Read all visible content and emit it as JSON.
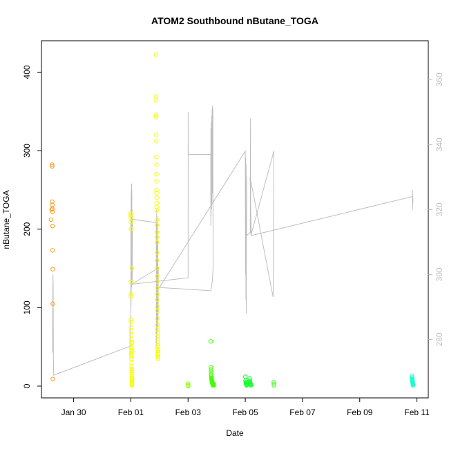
{
  "chart_data": {
    "type": "scatter",
    "title": "ATOM2 Southbound nButane_TOGA",
    "xlabel": "Date",
    "ylabel": "nButane_TOGA",
    "xlim": [
      "2017-01-28T21:00",
      "2017-02-11T09:30"
    ],
    "ylim": [
      -15,
      440
    ],
    "y2lim": [
      262,
      372
    ],
    "x_ticks": [
      {
        "date": "2017-01-30",
        "label": "Jan 30"
      },
      {
        "date": "2017-02-01",
        "label": "Feb 01"
      },
      {
        "date": "2017-02-03",
        "label": "Feb 03"
      },
      {
        "date": "2017-02-05",
        "label": "Feb 05"
      },
      {
        "date": "2017-02-07",
        "label": "Feb 07"
      },
      {
        "date": "2017-02-09",
        "label": "Feb 09"
      },
      {
        "date": "2017-02-11",
        "label": "Feb 11"
      }
    ],
    "y_ticks": [
      0,
      100,
      200,
      300,
      400
    ],
    "y2_ticks": [
      280,
      300,
      320,
      340,
      360
    ],
    "grid": false,
    "legend": "none",
    "line_series": {
      "color": "#bebebe",
      "points": [
        [
          "2017-01-29T06:05",
          276
        ],
        [
          "2017-01-29T06:20",
          280
        ],
        [
          "2017-01-29T06:30",
          290
        ],
        [
          "2017-01-29T06:40",
          300
        ],
        [
          "2017-01-29T06:50",
          296
        ],
        [
          "2017-01-29T07:00",
          275
        ],
        [
          "2017-01-29T07:15",
          269
        ],
        [
          "2017-01-31T23:55",
          278
        ],
        [
          "2017-02-01T00:02",
          320
        ],
        [
          "2017-02-01T00:08",
          290
        ],
        [
          "2017-02-01T00:14",
          325
        ],
        [
          "2017-02-01T00:20",
          294
        ],
        [
          "2017-02-01T00:26",
          327
        ],
        [
          "2017-02-01T00:32",
          296
        ],
        [
          "2017-02-01T00:38",
          328
        ],
        [
          "2017-02-01T00:44",
          298
        ],
        [
          "2017-02-01T00:50",
          326
        ],
        [
          "2017-02-01T00:56",
          300
        ],
        [
          "2017-02-01T01:02",
          320
        ],
        [
          "2017-02-01T01:10",
          297
        ],
        [
          "2017-02-01T01:20",
          317
        ],
        [
          "2017-02-01T21:20",
          316
        ],
        [
          "2017-02-01T21:30",
          278
        ],
        [
          "2017-02-01T21:40",
          320
        ],
        [
          "2017-02-01T21:50",
          283
        ],
        [
          "2017-02-01T22:00",
          318
        ],
        [
          "2017-02-01T22:10",
          282
        ],
        [
          "2017-02-01T22:20",
          316
        ],
        [
          "2017-02-01T22:30",
          284
        ],
        [
          "2017-02-01T22:40",
          310
        ],
        [
          "2017-02-01T22:50",
          286
        ],
        [
          "2017-02-01T23:00",
          302
        ],
        [
          "2017-02-01T00:40",
          297
        ],
        [
          "2017-02-03T00:00",
          299
        ],
        [
          "2017-02-03T00:05",
          350
        ],
        [
          "2017-02-03T00:10",
          337
        ],
        [
          "2017-02-03T19:00",
          337
        ],
        [
          "2017-02-03T19:05",
          315
        ],
        [
          "2017-02-03T19:10",
          345
        ],
        [
          "2017-02-03T19:20",
          318
        ],
        [
          "2017-02-03T19:30",
          347
        ],
        [
          "2017-02-03T19:40",
          320
        ],
        [
          "2017-02-03T19:50",
          349
        ],
        [
          "2017-02-03T20:00",
          322
        ],
        [
          "2017-02-03T20:10",
          351
        ],
        [
          "2017-02-03T20:20",
          325
        ],
        [
          "2017-02-03T20:30",
          352
        ],
        [
          "2017-02-03T20:40",
          328
        ],
        [
          "2017-02-03T20:50",
          351
        ],
        [
          "2017-02-03T21:00",
          302
        ],
        [
          "2017-02-03T20:20",
          298
        ],
        [
          "2017-02-03T19:00",
          295
        ],
        [
          "2017-02-02T00:00",
          296
        ],
        [
          "2017-02-05T00:00",
          338
        ],
        [
          "2017-02-05T00:10",
          300
        ],
        [
          "2017-02-05T00:20",
          336
        ],
        [
          "2017-02-05T00:30",
          292
        ],
        [
          "2017-02-05T00:40",
          334
        ],
        [
          "2017-02-05T00:50",
          288
        ],
        [
          "2017-02-05T01:00",
          330
        ],
        [
          "2017-02-05T01:10",
          312
        ],
        [
          "2017-02-05T04:10",
          313
        ],
        [
          "2017-02-05T04:20",
          348
        ],
        [
          "2017-02-05T04:30",
          318
        ],
        [
          "2017-02-05T04:40",
          312
        ],
        [
          "2017-02-06T00:00",
          338
        ],
        [
          "2017-02-05T23:20",
          293
        ],
        [
          "2017-02-05T04:00",
          330
        ],
        [
          "2017-02-05T05:00",
          312
        ],
        [
          "2017-02-10T20:00",
          324
        ],
        [
          "2017-02-10T20:10",
          326
        ],
        [
          "2017-02-10T20:20",
          320
        ],
        [
          "2017-02-10T20:30",
          324
        ],
        [
          "2017-02-10T20:40",
          322
        ]
      ]
    },
    "series": [
      {
        "color": "#ff9a1a",
        "points": [
          [
            "2017-01-29T05:00",
            212
          ],
          [
            "2017-01-29T05:30",
            225
          ],
          [
            "2017-01-29T06:00",
            282
          ],
          [
            "2017-01-29T06:02",
            280
          ],
          [
            "2017-01-29T06:05",
            235
          ],
          [
            "2017-01-29T06:08",
            231
          ],
          [
            "2017-01-29T06:10",
            226
          ],
          [
            "2017-01-29T06:12",
            222
          ],
          [
            "2017-01-29T06:15",
            204
          ],
          [
            "2017-01-29T06:20",
            173
          ],
          [
            "2017-01-29T06:25",
            149
          ],
          [
            "2017-01-29T06:30",
            105
          ],
          [
            "2017-01-29T06:35",
            9
          ]
        ]
      },
      {
        "color": "#f4ff00",
        "points": [
          [
            "2017-01-31T23:50",
            220
          ],
          [
            "2017-01-31T23:52",
            218
          ],
          [
            "2017-01-31T23:54",
            215
          ],
          [
            "2017-01-31T23:56",
            209
          ],
          [
            "2017-01-31T23:58",
            200
          ],
          [
            "2017-02-01T00:00",
            133
          ],
          [
            "2017-02-01T00:02",
            117
          ],
          [
            "2017-02-01T00:04",
            114
          ],
          [
            "2017-02-01T00:06",
            85
          ],
          [
            "2017-02-01T00:08",
            82
          ],
          [
            "2017-02-01T00:10",
            75
          ],
          [
            "2017-02-01T00:12",
            70
          ],
          [
            "2017-02-01T00:14",
            65
          ],
          [
            "2017-02-01T00:16",
            60
          ],
          [
            "2017-02-01T00:18",
            55
          ],
          [
            "2017-02-01T00:20",
            50
          ],
          [
            "2017-02-01T00:22",
            48
          ],
          [
            "2017-02-01T00:24",
            45
          ],
          [
            "2017-02-01T00:26",
            42
          ],
          [
            "2017-02-01T00:28",
            40
          ],
          [
            "2017-02-01T00:30",
            38
          ],
          [
            "2017-02-01T00:32",
            35
          ],
          [
            "2017-02-01T00:34",
            30
          ],
          [
            "2017-02-01T00:36",
            25
          ],
          [
            "2017-02-01T00:38",
            22
          ],
          [
            "2017-02-01T00:40",
            18
          ],
          [
            "2017-02-01T00:42",
            15
          ],
          [
            "2017-02-01T00:44",
            12
          ],
          [
            "2017-02-01T00:46",
            10
          ],
          [
            "2017-02-01T00:48",
            8
          ],
          [
            "2017-02-01T00:50",
            6
          ],
          [
            "2017-02-01T00:52",
            4
          ],
          [
            "2017-02-01T00:54",
            3
          ],
          [
            "2017-02-01T00:56",
            2
          ],
          [
            "2017-02-01T00:58",
            1
          ],
          [
            "2017-02-01T01:00",
            150
          ],
          [
            "2017-02-01T01:02",
            56
          ],
          [
            "2017-02-01T01:04",
            44
          ],
          [
            "2017-02-01T01:06",
            20
          ],
          [
            "2017-02-01T01:08",
            9
          ],
          [
            "2017-02-01T21:10",
            422
          ],
          [
            "2017-02-01T21:12",
            369
          ],
          [
            "2017-02-01T21:14",
            364
          ],
          [
            "2017-02-01T21:16",
            346
          ],
          [
            "2017-02-01T21:18",
            343
          ],
          [
            "2017-02-01T21:20",
            320
          ],
          [
            "2017-02-01T21:22",
            312
          ],
          [
            "2017-02-01T21:24",
            292
          ],
          [
            "2017-02-01T21:26",
            282
          ],
          [
            "2017-02-01T21:28",
            270
          ],
          [
            "2017-02-01T21:30",
            261
          ],
          [
            "2017-02-01T21:32",
            250
          ],
          [
            "2017-02-01T21:34",
            246
          ],
          [
            "2017-02-01T21:36",
            240
          ],
          [
            "2017-02-01T21:38",
            233
          ],
          [
            "2017-02-01T21:40",
            228
          ],
          [
            "2017-02-01T21:42",
            224
          ],
          [
            "2017-02-01T21:44",
            212
          ],
          [
            "2017-02-01T21:46",
            205
          ],
          [
            "2017-02-01T21:48",
            196
          ],
          [
            "2017-02-01T21:50",
            190
          ],
          [
            "2017-02-01T21:52",
            183
          ],
          [
            "2017-02-01T21:54",
            170
          ],
          [
            "2017-02-01T21:56",
            160
          ],
          [
            "2017-02-01T21:58",
            150
          ],
          [
            "2017-02-01T22:00",
            140
          ],
          [
            "2017-02-01T22:02",
            133
          ],
          [
            "2017-02-01T22:04",
            125
          ],
          [
            "2017-02-01T22:06",
            117
          ],
          [
            "2017-02-01T22:08",
            110
          ],
          [
            "2017-02-01T22:10",
            101
          ],
          [
            "2017-02-01T22:12",
            96
          ],
          [
            "2017-02-01T22:14",
            86
          ],
          [
            "2017-02-01T22:16",
            78
          ],
          [
            "2017-02-01T22:18",
            72
          ],
          [
            "2017-02-01T22:20",
            68
          ],
          [
            "2017-02-01T22:22",
            63
          ],
          [
            "2017-02-01T22:24",
            60
          ],
          [
            "2017-02-01T22:26",
            56
          ],
          [
            "2017-02-01T22:28",
            52
          ],
          [
            "2017-02-01T22:30",
            50
          ],
          [
            "2017-02-01T22:32",
            47
          ],
          [
            "2017-02-01T22:34",
            45
          ],
          [
            "2017-02-01T22:36",
            43
          ],
          [
            "2017-02-01T22:38",
            41
          ],
          [
            "2017-02-01T22:40",
            39
          ],
          [
            "2017-02-01T22:42",
            37
          ],
          [
            "2017-02-01T22:44",
            35
          ]
        ]
      },
      {
        "color": "#90ff00",
        "points": [
          [
            "2017-02-03T00:00",
            3
          ],
          [
            "2017-02-03T00:05",
            1
          ],
          [
            "2017-02-03T00:10",
            0
          ]
        ]
      },
      {
        "color": "#44ff00",
        "points": [
          [
            "2017-02-03T19:00",
            57
          ],
          [
            "2017-02-03T19:10",
            24
          ],
          [
            "2017-02-03T19:15",
            21
          ],
          [
            "2017-02-03T19:20",
            18
          ],
          [
            "2017-02-03T19:25",
            15
          ],
          [
            "2017-02-03T19:30",
            13
          ],
          [
            "2017-02-03T19:35",
            11
          ],
          [
            "2017-02-03T19:40",
            10
          ],
          [
            "2017-02-03T19:45",
            9
          ],
          [
            "2017-02-03T19:50",
            8
          ],
          [
            "2017-02-03T19:55",
            7
          ],
          [
            "2017-02-03T20:00",
            6
          ],
          [
            "2017-02-03T20:05",
            5
          ],
          [
            "2017-02-03T20:10",
            5
          ],
          [
            "2017-02-03T20:15",
            4
          ],
          [
            "2017-02-03T20:20",
            4
          ],
          [
            "2017-02-03T20:25",
            3
          ],
          [
            "2017-02-03T20:30",
            3
          ],
          [
            "2017-02-03T20:35",
            2
          ],
          [
            "2017-02-03T20:40",
            2
          ],
          [
            "2017-02-03T20:45",
            2
          ],
          [
            "2017-02-03T20:50",
            1
          ],
          [
            "2017-02-03T20:55",
            1
          ],
          [
            "2017-02-03T21:00",
            1
          ],
          [
            "2017-02-03T21:10",
            2
          ],
          [
            "2017-02-03T21:20",
            3
          ],
          [
            "2017-02-03T21:30",
            1
          ]
        ]
      },
      {
        "color": "#12ff2a",
        "points": [
          [
            "2017-02-05T00:00",
            12
          ],
          [
            "2017-02-05T00:10",
            7
          ],
          [
            "2017-02-05T00:20",
            5
          ],
          [
            "2017-02-05T00:30",
            4
          ],
          [
            "2017-02-05T00:40",
            3
          ],
          [
            "2017-02-05T00:50",
            2
          ],
          [
            "2017-02-05T01:00",
            2
          ],
          [
            "2017-02-05T01:10",
            1
          ],
          [
            "2017-02-05T03:40",
            10
          ],
          [
            "2017-02-05T03:50",
            7
          ],
          [
            "2017-02-05T04:00",
            5
          ],
          [
            "2017-02-05T04:10",
            4
          ],
          [
            "2017-02-05T04:20",
            3
          ],
          [
            "2017-02-05T04:30",
            2
          ],
          [
            "2017-02-05T04:40",
            1
          ]
        ]
      },
      {
        "color": "#55ff30",
        "points": [
          [
            "2017-02-05T23:50",
            5
          ],
          [
            "2017-02-05T23:55",
            3
          ],
          [
            "2017-02-06T00:00",
            1
          ]
        ]
      },
      {
        "color": "#11ffcc",
        "points": [
          [
            "2017-02-10T19:50",
            13
          ],
          [
            "2017-02-10T19:55",
            11
          ],
          [
            "2017-02-10T20:00",
            9
          ],
          [
            "2017-02-10T20:05",
            8
          ],
          [
            "2017-02-10T20:10",
            7
          ],
          [
            "2017-02-10T20:15",
            6
          ],
          [
            "2017-02-10T20:20",
            5
          ],
          [
            "2017-02-10T20:25",
            4
          ],
          [
            "2017-02-10T20:30",
            3
          ],
          [
            "2017-02-10T20:35",
            2
          ],
          [
            "2017-02-10T20:40",
            1
          ]
        ]
      }
    ]
  }
}
